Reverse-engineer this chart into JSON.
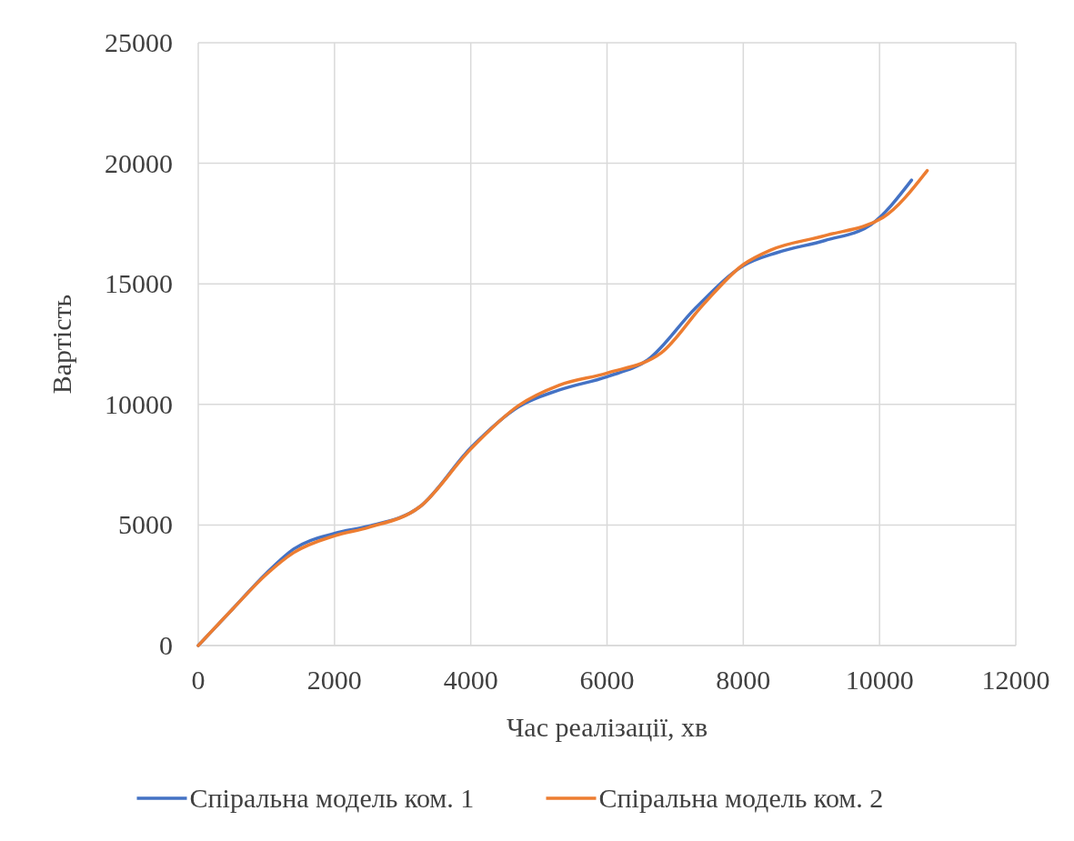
{
  "chart_data": {
    "type": "line",
    "xlabel": "Час реалізації, хв",
    "ylabel": "Вартість",
    "xlim": [
      0,
      12000
    ],
    "ylim": [
      0,
      25000
    ],
    "xticks": [
      0,
      2000,
      4000,
      6000,
      8000,
      10000,
      12000
    ],
    "yticks": [
      0,
      5000,
      10000,
      15000,
      20000,
      25000
    ],
    "grid": true,
    "legend": "bottom",
    "marker": "none",
    "line_style": "solid",
    "series": [
      {
        "name": "Спіральна модель ком. 1",
        "color": "#4472c4",
        "x": [
          0,
          500,
          1000,
          1400,
          2000,
          2500,
          3250,
          4000,
          4700,
          5300,
          6000,
          6600,
          7300,
          8000,
          8500,
          9200,
          9870,
          10470
        ],
        "values": [
          0,
          1500,
          3000,
          4000,
          4650,
          4950,
          5750,
          8200,
          9900,
          10600,
          11150,
          11850,
          14000,
          15750,
          16300,
          16800,
          17450,
          19300
        ]
      },
      {
        "name": "Спіральна модель ком. 2",
        "color": "#ed7d31",
        "x": [
          0,
          500,
          1000,
          1400,
          2000,
          2500,
          3250,
          4000,
          4700,
          5300,
          6000,
          6800,
          7400,
          8000,
          8400,
          9200,
          10050,
          10700
        ],
        "values": [
          0,
          1500,
          2950,
          3850,
          4550,
          4900,
          5750,
          8150,
          9950,
          10800,
          11300,
          12150,
          14100,
          15800,
          16400,
          17000,
          17750,
          19700
        ]
      }
    ]
  }
}
